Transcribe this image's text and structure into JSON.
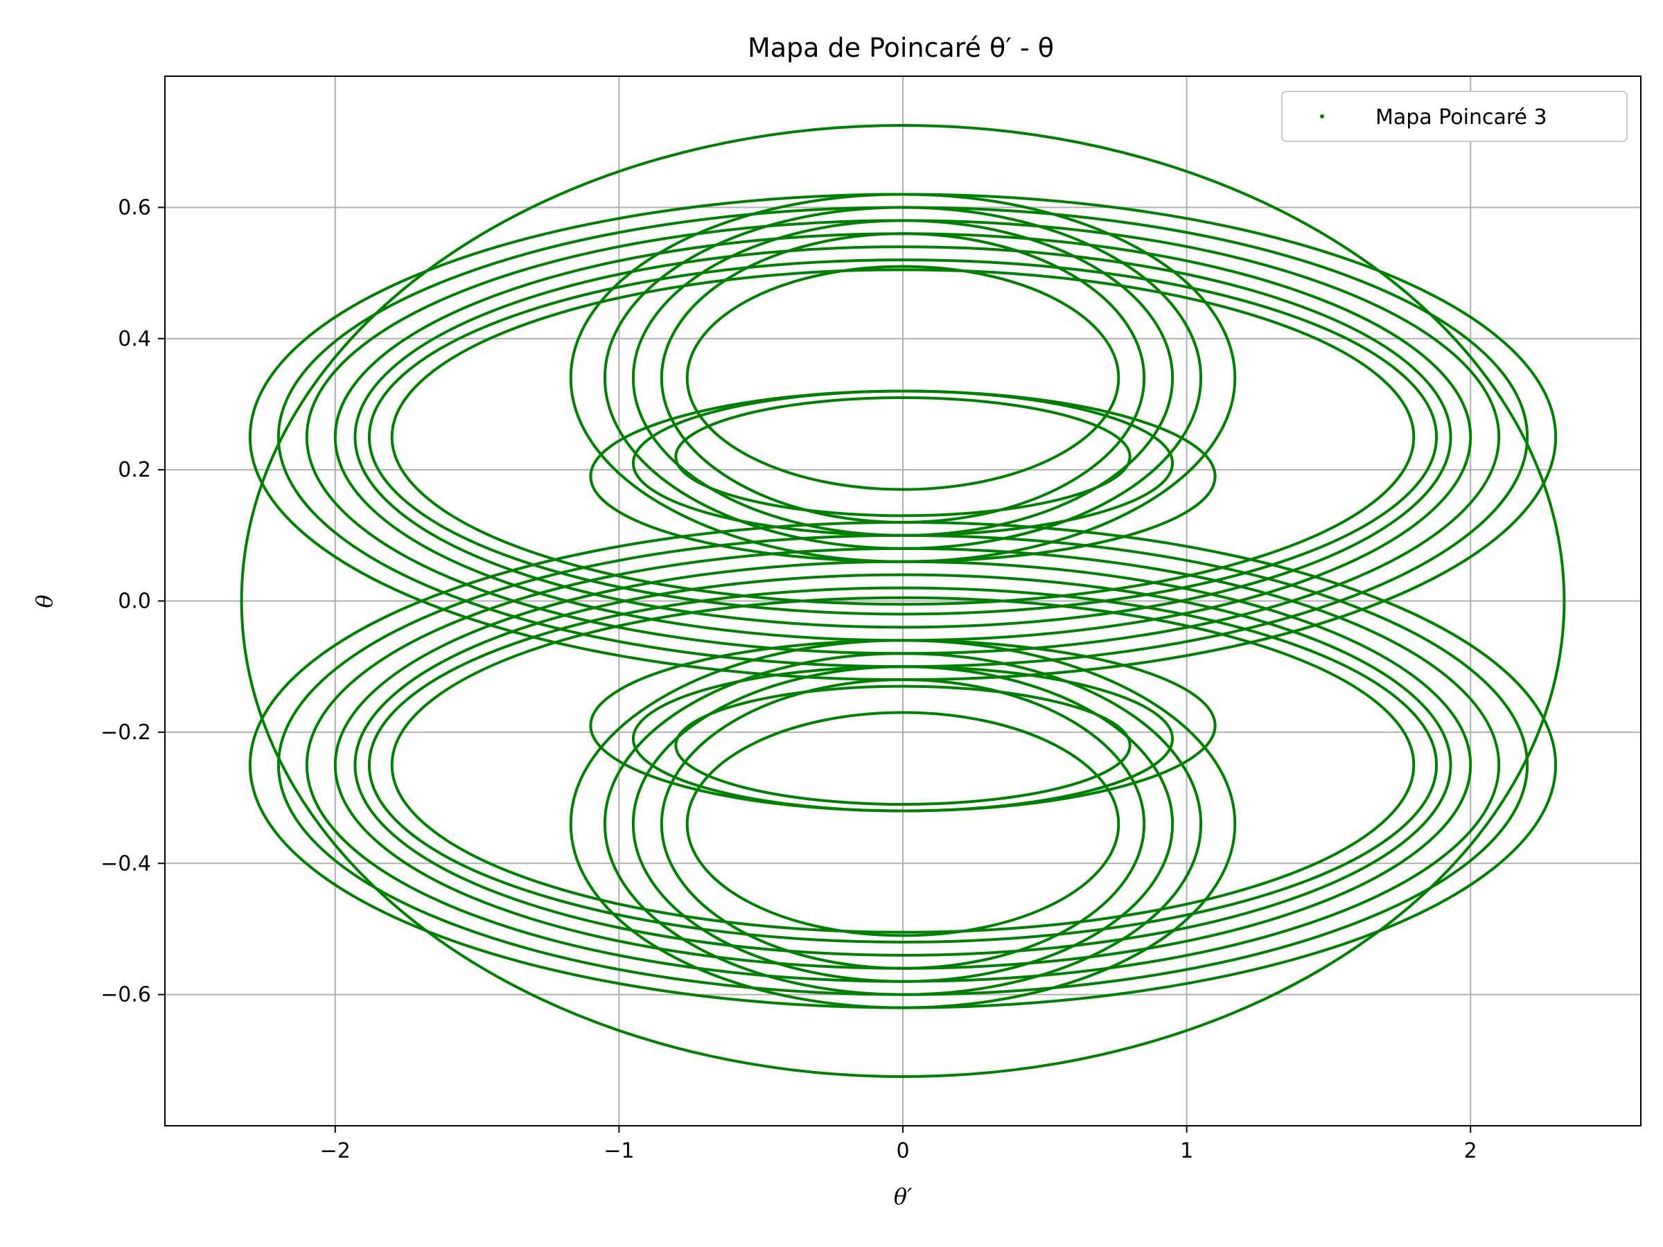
{
  "chart_data": {
    "type": "scatter",
    "title": "Mapa de Poincaré θ′ - θ",
    "xlabel": "θ′",
    "ylabel": "θ",
    "xlim": [
      -2.6,
      2.6
    ],
    "ylim": [
      -0.8,
      0.8
    ],
    "x_ticks": [
      -2,
      -1,
      0,
      1,
      2
    ],
    "x_tick_labels": [
      "−2",
      "−1",
      "0",
      "1",
      "2"
    ],
    "y_ticks": [
      -0.6,
      -0.4,
      -0.2,
      0.0,
      0.2,
      0.4,
      0.6
    ],
    "y_tick_labels": [
      "−0.6",
      "−0.4",
      "−0.2",
      "0.0",
      "0.2",
      "0.4",
      "0.6"
    ],
    "grid": true,
    "legend_position": "top-right",
    "series": [
      {
        "name": "Mapa Poincaré 3",
        "color": "#008000",
        "marker": "point",
        "rings": [
          {
            "cx": 0,
            "cy": 0,
            "rx": 2.33,
            "ry": 0.725
          },
          {
            "cx": 0,
            "cy": 0.25,
            "rx": 2.3,
            "ry": 0.37
          },
          {
            "cx": 0,
            "cy": 0.25,
            "rx": 2.2,
            "ry": 0.35
          },
          {
            "cx": 0,
            "cy": 0.25,
            "rx": 2.1,
            "ry": 0.33
          },
          {
            "cx": 0,
            "cy": 0.25,
            "rx": 2.0,
            "ry": 0.31
          },
          {
            "cx": 0,
            "cy": 0.25,
            "rx": 1.93,
            "ry": 0.29
          },
          {
            "cx": 0,
            "cy": 0.25,
            "rx": 1.88,
            "ry": 0.27
          },
          {
            "cx": 0,
            "cy": 0.25,
            "rx": 1.8,
            "ry": 0.255
          },
          {
            "cx": 0,
            "cy": -0.25,
            "rx": 2.3,
            "ry": 0.37
          },
          {
            "cx": 0,
            "cy": -0.25,
            "rx": 2.2,
            "ry": 0.35
          },
          {
            "cx": 0,
            "cy": -0.25,
            "rx": 2.1,
            "ry": 0.33
          },
          {
            "cx": 0,
            "cy": -0.25,
            "rx": 2.0,
            "ry": 0.31
          },
          {
            "cx": 0,
            "cy": -0.25,
            "rx": 1.93,
            "ry": 0.29
          },
          {
            "cx": 0,
            "cy": -0.25,
            "rx": 1.88,
            "ry": 0.27
          },
          {
            "cx": 0,
            "cy": -0.25,
            "rx": 1.8,
            "ry": 0.255
          },
          {
            "cx": 0,
            "cy": 0.34,
            "rx": 1.17,
            "ry": 0.28
          },
          {
            "cx": 0,
            "cy": 0.34,
            "rx": 1.05,
            "ry": 0.26
          },
          {
            "cx": 0,
            "cy": 0.34,
            "rx": 0.95,
            "ry": 0.24
          },
          {
            "cx": 0,
            "cy": 0.34,
            "rx": 0.85,
            "ry": 0.22
          },
          {
            "cx": 0,
            "cy": 0.34,
            "rx": 0.76,
            "ry": 0.17
          },
          {
            "cx": 0,
            "cy": -0.34,
            "rx": 1.17,
            "ry": 0.28
          },
          {
            "cx": 0,
            "cy": -0.34,
            "rx": 1.05,
            "ry": 0.26
          },
          {
            "cx": 0,
            "cy": -0.34,
            "rx": 0.95,
            "ry": 0.24
          },
          {
            "cx": 0,
            "cy": -0.34,
            "rx": 0.85,
            "ry": 0.22
          },
          {
            "cx": 0,
            "cy": -0.34,
            "rx": 0.76,
            "ry": 0.17
          },
          {
            "cx": 0,
            "cy": 0.19,
            "rx": 1.1,
            "ry": 0.13
          },
          {
            "cx": 0,
            "cy": 0.21,
            "rx": 0.95,
            "ry": 0.11
          },
          {
            "cx": 0,
            "cy": 0.22,
            "rx": 0.8,
            "ry": 0.09
          },
          {
            "cx": 0,
            "cy": -0.19,
            "rx": 1.1,
            "ry": 0.13
          },
          {
            "cx": 0,
            "cy": -0.21,
            "rx": 0.95,
            "ry": 0.11
          },
          {
            "cx": 0,
            "cy": -0.22,
            "rx": 0.8,
            "ry": 0.09
          }
        ]
      }
    ]
  }
}
